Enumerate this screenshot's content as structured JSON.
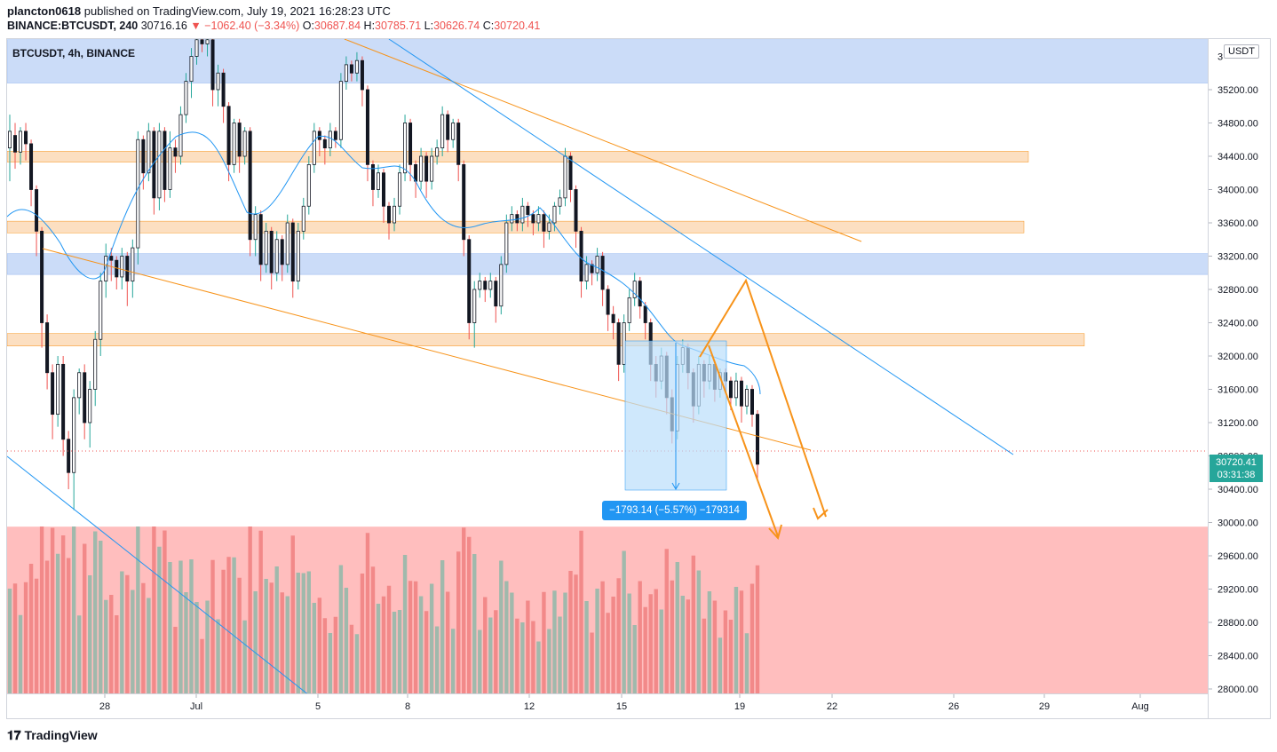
{
  "header": {
    "publisher": "plancton0618",
    "published_text": "published on TradingView.com, July 19, 2021 16:28:23 UTC",
    "symbol_line": "BINANCE:BTCUSDT, 240",
    "last": "30716.16",
    "change": "▼ −1062.40 (−3.34%)",
    "o_label": "O:",
    "o": "30687.84",
    "h_label": "H:",
    "h": "30785.71",
    "l_label": "L:",
    "l": "30626.74",
    "c_label": "C:",
    "c": "30720.41"
  },
  "legend_symbol": "BTCUSDT, 4h, BINANCE",
  "currency_unit": "USDT",
  "price_tag": {
    "price": "30720.41",
    "countdown": "03:31:38"
  },
  "measure_label": "−1793.14 (−5.57%) −179314",
  "brand": "TradingView",
  "colors": {
    "up": "#26a69a",
    "down": "#ef5350",
    "ma": "#2196f3",
    "trend_orange": "#f7931a",
    "zone_blue": "#c5d8f7",
    "zone_orange": "#fcd9b6",
    "zone_red": "#ffb7b7"
  },
  "chart_data": {
    "type": "candlestick",
    "y_axis": {
      "ticks": [
        35200,
        34800,
        34400,
        34000,
        33600,
        33200,
        32800,
        32400,
        32000,
        31600,
        31200,
        30800,
        30400,
        30000,
        29600,
        29200,
        28800,
        28400,
        28000
      ],
      "tick_labels": [
        "35200.00",
        "34800.00",
        "34400.00",
        "34000.00",
        "33600.00",
        "33200.00",
        "32800.00",
        "32400.00",
        "32000.00",
        "31600.00",
        "31200.00",
        "30800.00",
        "30400.00",
        "30000.00",
        "29600.00",
        "29200.00",
        "28800.00",
        "28400.00",
        "28000.00"
      ],
      "top_partial_label": "3"
    },
    "x_axis": {
      "tick_labels": [
        "28",
        "Jul",
        "5",
        "8",
        "12",
        "15",
        "19",
        "22",
        "26",
        "29",
        "Aug"
      ]
    },
    "last_price": 30720.41,
    "zones": [
      {
        "kind": "blue",
        "from": 35280,
        "to": 35800
      },
      {
        "kind": "orange",
        "from": 34330,
        "to": 34460
      },
      {
        "kind": "orange",
        "from": 33480,
        "to": 33620
      },
      {
        "kind": "blue",
        "from": 32980,
        "to": 33230
      },
      {
        "kind": "orange",
        "from": 32120,
        "to": 32270
      },
      {
        "kind": "red",
        "from": 27930,
        "to": 29950
      }
    ],
    "candles": [
      [
        34500,
        34700,
        34300,
        34900,
        34100
      ],
      [
        34650,
        34450,
        34350,
        34800,
        34250
      ],
      [
        34450,
        34700,
        34400,
        34750,
        34300
      ],
      [
        34700,
        34550,
        34450,
        34800,
        34350
      ],
      [
        34550,
        34000,
        33900,
        34600,
        33800
      ],
      [
        34000,
        33500,
        33300,
        34050,
        33200
      ],
      [
        33500,
        32400,
        32200,
        33550,
        32100
      ],
      [
        32400,
        31800,
        31700,
        32500,
        31600
      ],
      [
        31800,
        31300,
        31100,
        31900,
        31000
      ],
      [
        31300,
        31900,
        31200,
        32000,
        31150
      ],
      [
        31900,
        31000,
        30900,
        32000,
        30800
      ],
      [
        31000,
        30600,
        30500,
        31100,
        30400
      ],
      [
        30600,
        31500,
        30500,
        31600,
        30150
      ],
      [
        31500,
        31800,
        31400,
        31850,
        31300
      ],
      [
        31800,
        31200,
        31100,
        31900,
        31000
      ],
      [
        31200,
        31600,
        31100,
        31700,
        30900
      ],
      [
        31600,
        32200,
        31500,
        32300,
        31400
      ],
      [
        32200,
        32900,
        32100,
        33000,
        32000
      ],
      [
        32900,
        33200,
        32850,
        33350,
        32700
      ],
      [
        33200,
        33150,
        33050,
        33300,
        32900
      ],
      [
        33150,
        32950,
        32850,
        33200,
        32800
      ],
      [
        32950,
        33200,
        32900,
        33300,
        32800
      ],
      [
        33200,
        32900,
        32800,
        33250,
        32600
      ],
      [
        32900,
        33300,
        32850,
        33400,
        32700
      ],
      [
        33300,
        34600,
        33200,
        34700,
        33100
      ],
      [
        34600,
        34200,
        34100,
        34650,
        34000
      ],
      [
        34200,
        34700,
        34150,
        34800,
        34100
      ],
      [
        34700,
        33900,
        33800,
        34750,
        33700
      ],
      [
        33900,
        34700,
        33850,
        34800,
        33750
      ],
      [
        34700,
        34000,
        33900,
        34750,
        33850
      ],
      [
        34000,
        34500,
        33950,
        34700,
        33900
      ],
      [
        34500,
        34400,
        34300,
        34600,
        34200
      ],
      [
        34400,
        34900,
        34350,
        35000,
        34300
      ],
      [
        34900,
        35300,
        34850,
        35400,
        34800
      ],
      [
        35300,
        35600,
        35200,
        35700,
        35100
      ],
      [
        35600,
        35800,
        35550,
        35900,
        35500
      ],
      [
        35800,
        35750,
        35700,
        35900,
        35650
      ],
      [
        35750,
        35800,
        35700,
        35900,
        35600
      ],
      [
        35800,
        35200,
        35100,
        35850,
        35000
      ],
      [
        35200,
        35400,
        35100,
        35500,
        35000
      ],
      [
        35400,
        35000,
        34900,
        35450,
        34800
      ],
      [
        35000,
        34300,
        34200,
        35050,
        34100
      ],
      [
        34300,
        34800,
        34250,
        34850,
        34200
      ],
      [
        34800,
        34400,
        34300,
        34850,
        34200
      ],
      [
        34400,
        34700,
        34350,
        34750,
        34300
      ],
      [
        34700,
        33400,
        33300,
        34750,
        33200
      ],
      [
        33400,
        33700,
        33350,
        33800,
        33200
      ],
      [
        33700,
        33100,
        33000,
        33750,
        32900
      ],
      [
        33100,
        33500,
        33050,
        33600,
        33000
      ],
      [
        33500,
        33000,
        32900,
        33550,
        32800
      ],
      [
        33000,
        33400,
        32950,
        33500,
        32900
      ],
      [
        33400,
        33100,
        33000,
        33450,
        32900
      ],
      [
        33100,
        33600,
        33050,
        33700,
        33000
      ],
      [
        33600,
        32900,
        32800,
        33650,
        32700
      ],
      [
        32900,
        33500,
        32850,
        33600,
        32800
      ],
      [
        33500,
        33800,
        33450,
        33900,
        33400
      ],
      [
        33800,
        34300,
        33750,
        34400,
        33700
      ],
      [
        34300,
        34700,
        34250,
        34800,
        34200
      ],
      [
        34700,
        34600,
        34500,
        34750,
        34400
      ],
      [
        34600,
        34500,
        34400,
        34650,
        34300
      ],
      [
        34500,
        34700,
        34450,
        34800,
        34400
      ],
      [
        34700,
        34600,
        34500,
        34750,
        34500
      ],
      [
        34600,
        35300,
        34550,
        35400,
        34500
      ],
      [
        35300,
        35500,
        35250,
        35600,
        35200
      ],
      [
        35500,
        35400,
        35300,
        35550,
        35300
      ],
      [
        35400,
        35550,
        35350,
        35650,
        35300
      ],
      [
        35550,
        35200,
        35100,
        35600,
        35000
      ],
      [
        35200,
        34300,
        34200,
        35250,
        34100
      ],
      [
        34300,
        34000,
        33900,
        34350,
        33800
      ],
      [
        34000,
        34200,
        33950,
        34300,
        33900
      ],
      [
        34200,
        33800,
        33700,
        34250,
        33600
      ],
      [
        33800,
        33600,
        33500,
        33850,
        33400
      ],
      [
        33600,
        33800,
        33550,
        33900,
        33500
      ],
      [
        33800,
        34200,
        33750,
        34300,
        33700
      ],
      [
        34200,
        34800,
        34150,
        34900,
        34100
      ],
      [
        34800,
        34300,
        34200,
        34850,
        34100
      ],
      [
        34300,
        34100,
        34000,
        34350,
        33900
      ],
      [
        34100,
        34400,
        34050,
        34500,
        34000
      ],
      [
        34400,
        34100,
        34000,
        34450,
        33900
      ],
      [
        34100,
        34400,
        34050,
        34500,
        34000
      ],
      [
        34400,
        34500,
        34350,
        34600,
        34300
      ],
      [
        34500,
        34900,
        34450,
        35000,
        34400
      ],
      [
        34900,
        34600,
        34500,
        34950,
        34450
      ],
      [
        34600,
        34800,
        34550,
        34850,
        34500
      ],
      [
        34800,
        34300,
        34200,
        34850,
        34100
      ],
      [
        34300,
        33400,
        33300,
        34350,
        33200
      ],
      [
        33400,
        32400,
        32300,
        33450,
        32200
      ],
      [
        32400,
        32800,
        32350,
        32900,
        32100
      ],
      [
        32800,
        32900,
        32750,
        33000,
        32700
      ],
      [
        32900,
        32800,
        32700,
        32950,
        32650
      ],
      [
        32800,
        32900,
        32750,
        33000,
        32700
      ],
      [
        32900,
        32600,
        32500,
        32950,
        32400
      ],
      [
        32600,
        33100,
        32550,
        33200,
        32500
      ],
      [
        33100,
        33600,
        33050,
        33700,
        33000
      ],
      [
        33600,
        33700,
        33550,
        33800,
        33500
      ],
      [
        33700,
        33600,
        33500,
        33750,
        33500
      ],
      [
        33600,
        33800,
        33550,
        33900,
        33500
      ],
      [
        33800,
        33700,
        33600,
        33850,
        33550
      ],
      [
        33700,
        33600,
        33500,
        33750,
        33450
      ],
      [
        33600,
        33700,
        33550,
        33800,
        33500
      ],
      [
        33700,
        33500,
        33400,
        33750,
        33300
      ],
      [
        33500,
        33600,
        33450,
        33700,
        33400
      ],
      [
        33600,
        33800,
        33550,
        33850,
        33500
      ],
      [
        33800,
        33900,
        33750,
        34000,
        33700
      ],
      [
        33900,
        34400,
        33850,
        34500,
        33800
      ],
      [
        34400,
        34000,
        33900,
        34450,
        33850
      ],
      [
        34000,
        33500,
        33400,
        34050,
        33300
      ],
      [
        33500,
        32900,
        32800,
        33550,
        32700
      ],
      [
        32900,
        33100,
        32850,
        33200,
        32800
      ],
      [
        33100,
        33000,
        32900,
        33150,
        32850
      ],
      [
        33000,
        33200,
        32950,
        33300,
        32900
      ],
      [
        33200,
        32800,
        32700,
        33250,
        32600
      ],
      [
        32800,
        32500,
        32400,
        32850,
        32300
      ],
      [
        32500,
        32400,
        32300,
        32600,
        32200
      ],
      [
        32400,
        31900,
        31800,
        32450,
        31700
      ],
      [
        31900,
        32400,
        31850,
        32500,
        31800
      ],
      [
        32400,
        32700,
        32350,
        32800,
        32300
      ],
      [
        32700,
        32900,
        32650,
        33000,
        32600
      ],
      [
        32900,
        32600,
        32500,
        32950,
        32450
      ],
      [
        32600,
        32400,
        32300,
        32650,
        32200
      ],
      [
        32400,
        31900,
        31800,
        32450,
        31700
      ],
      [
        31900,
        31700,
        31600,
        32000,
        31500
      ],
      [
        31700,
        32000,
        31650,
        32100,
        31600
      ],
      [
        32000,
        31500,
        31400,
        32050,
        31300
      ],
      [
        31500,
        31100,
        31000,
        31600,
        30950
      ],
      [
        31100,
        31900,
        31050,
        32000,
        31000
      ],
      [
        31900,
        32100,
        31850,
        32200,
        31800
      ],
      [
        32100,
        31800,
        31700,
        32150,
        31600
      ],
      [
        31800,
        31400,
        31300,
        31850,
        31200
      ],
      [
        31400,
        31900,
        31350,
        32000,
        31300
      ],
      [
        31900,
        31700,
        31600,
        31950,
        31500
      ],
      [
        31700,
        31900,
        31650,
        32000,
        31600
      ],
      [
        31900,
        31600,
        31500,
        31950,
        31450
      ],
      [
        31600,
        31800,
        31550,
        31850,
        31500
      ],
      [
        31800,
        31700,
        31600,
        31850,
        31550
      ],
      [
        31700,
        31500,
        31400,
        31750,
        31350
      ],
      [
        31500,
        31700,
        31450,
        31800,
        31400
      ],
      [
        31700,
        31400,
        31300,
        31750,
        31200
      ],
      [
        31400,
        31600,
        31350,
        31650,
        31300
      ],
      [
        31600,
        31300,
        31200,
        31650,
        31150
      ],
      [
        31300,
        30700,
        30600,
        31350,
        30500
      ]
    ],
    "candle_note": "values approximate: [open, close, low-ish, high, low]",
    "measure": {
      "from_price": 32180,
      "to_price": 30387,
      "change": -1793.14,
      "change_pct": -5.57
    }
  }
}
